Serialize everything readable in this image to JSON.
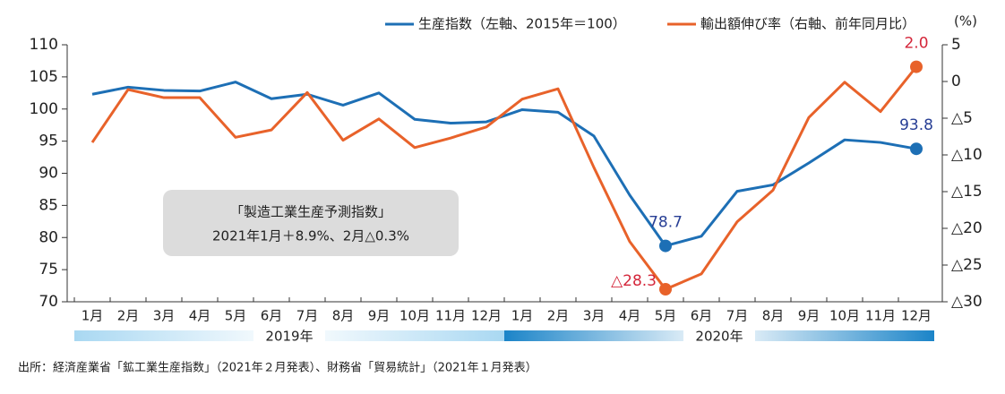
{
  "chart_data": {
    "type": "line",
    "categories": [
      "1月",
      "2月",
      "3月",
      "4月",
      "5月",
      "6月",
      "7月",
      "8月",
      "9月",
      "10月",
      "11月",
      "12月",
      "1月",
      "2月",
      "3月",
      "4月",
      "5月",
      "6月",
      "7月",
      "8月",
      "9月",
      "10月",
      "11月",
      "12月"
    ],
    "x_groups": [
      "2019年",
      "2020年"
    ],
    "series": [
      {
        "name": "生産指数（左軸、2015年＝100）",
        "color": "#1d6fb5",
        "values": [
          102.3,
          103.4,
          102.9,
          102.8,
          104.2,
          101.6,
          102.3,
          100.6,
          102.5,
          98.4,
          97.8,
          98.0,
          99.9,
          99.5,
          95.8,
          86.6,
          78.7,
          80.2,
          87.2,
          88.2,
          91.6,
          95.2,
          94.8,
          93.8
        ],
        "value_labels": [
          null,
          null,
          null,
          null,
          null,
          null,
          null,
          null,
          null,
          null,
          null,
          null,
          null,
          null,
          null,
          null,
          "78.7",
          null,
          null,
          null,
          null,
          null,
          null,
          "93.8"
        ],
        "label_color": "#283f95"
      },
      {
        "name": "輸出額伸び率（右軸、前年同月比）",
        "color": "#e8622a",
        "axis": "y2",
        "values": [
          -8.3,
          -1.1,
          -2.2,
          -2.2,
          -7.6,
          -6.6,
          -1.5,
          -8.0,
          -5.1,
          -9.0,
          -7.7,
          -6.2,
          -2.4,
          -1.0,
          -11.7,
          -21.8,
          -28.3,
          -26.2,
          -19.1,
          -14.8,
          -4.9,
          -0.1,
          -4.1,
          2.0
        ],
        "value_labels": [
          null,
          null,
          null,
          null,
          null,
          null,
          null,
          null,
          null,
          null,
          null,
          null,
          null,
          null,
          null,
          null,
          "△28.3",
          null,
          null,
          null,
          null,
          null,
          null,
          "2.0"
        ],
        "label_color": "#d4263a"
      }
    ],
    "ylim": [
      70,
      110
    ],
    "yticks": [
      70,
      75,
      80,
      85,
      90,
      95,
      100,
      105,
      110
    ],
    "y2lim": [
      -30,
      5
    ],
    "y2ticks": [
      {
        "value": -30,
        "label": "△30"
      },
      {
        "value": -25,
        "label": "△25"
      },
      {
        "value": -20,
        "label": "△20"
      },
      {
        "value": -15,
        "label": "△15"
      },
      {
        "value": -10,
        "label": "△10"
      },
      {
        "value": -5,
        "label": "△5"
      },
      0,
      5
    ],
    "y2label": "(%)",
    "annotation": [
      "「製造工業生産予測指数」",
      "2021年1月＋8.9%、2月△0.3%"
    ],
    "source": "出所：経済産業省「鉱工業生産指数」（2021年２月発表）、財務省「貿易統計」（2021年１月発表）"
  }
}
